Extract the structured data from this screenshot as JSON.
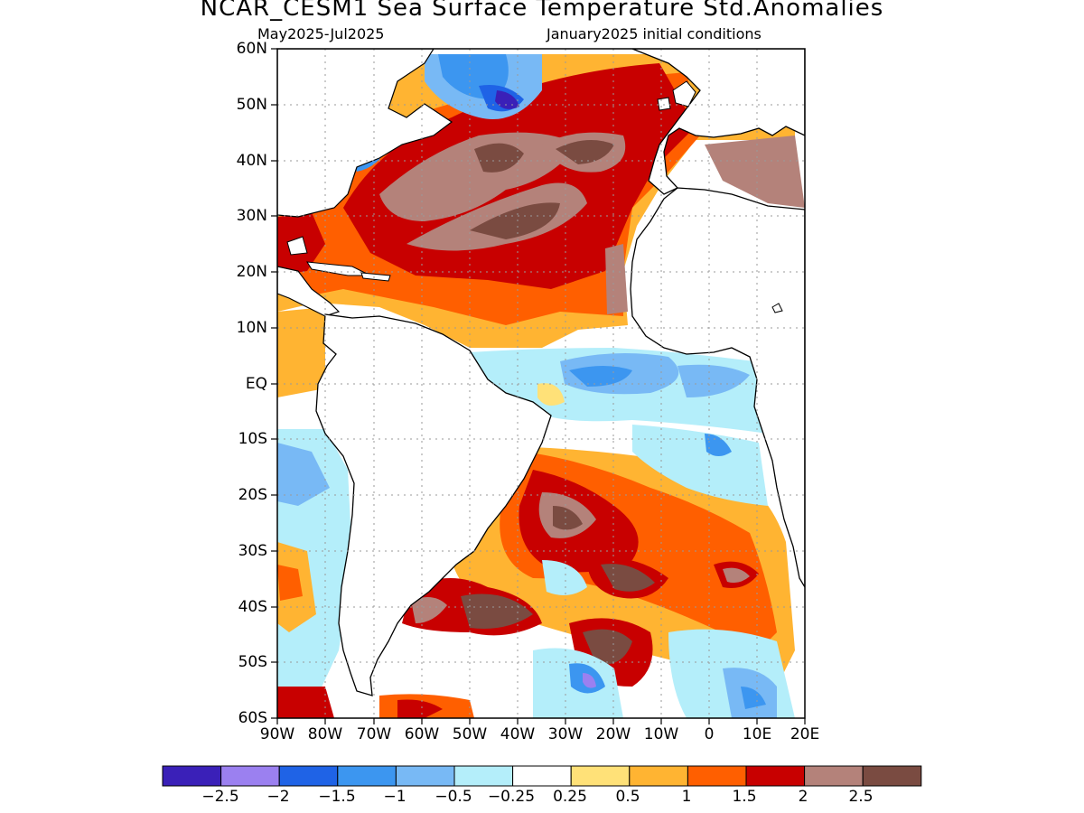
{
  "title": "NCAR_CESM1 Sea Surface Temperature Std.Anomalies",
  "subtitle_left": "May2025-Jul2025",
  "subtitle_right": "January2025 initial conditions",
  "lat_labels": [
    "60N",
    "50N",
    "40N",
    "30N",
    "20N",
    "10N",
    "EQ",
    "10S",
    "20S",
    "30S",
    "40S",
    "50S",
    "60S"
  ],
  "lon_labels": [
    "90W",
    "80W",
    "70W",
    "60W",
    "50W",
    "40W",
    "30W",
    "20W",
    "10W",
    "0",
    "10E",
    "20E"
  ],
  "colorbar": {
    "colors": [
      "#3a20b8",
      "#9b80f0",
      "#1f63e6",
      "#3c96f0",
      "#78b9f5",
      "#b4eefa",
      "#ffffff",
      "#ffe178",
      "#ffb432",
      "#ff5f00",
      "#c80000",
      "#b4827a",
      "#7a4b41"
    ],
    "labels": [
      "-2.5",
      "-2",
      "-1.5",
      "-1",
      "-0.5",
      "-0.25",
      "0.25",
      "0.5",
      "1",
      "1.5",
      "2",
      "2.5"
    ]
  },
  "colors": {
    "land": "#ffffff",
    "coastline": "#000000",
    "grid": "#9a9a9a"
  }
}
